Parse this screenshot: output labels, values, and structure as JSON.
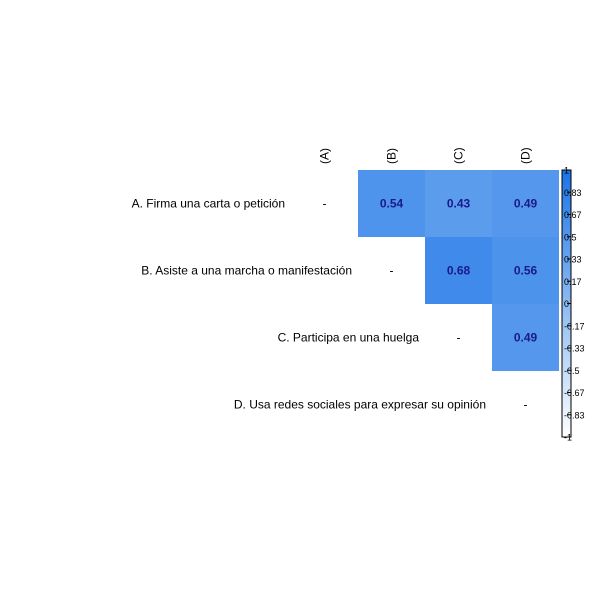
{
  "chart_data": {
    "type": "heatmap",
    "variant": "correlation-matrix-upper-triangle",
    "row_labels": [
      "A. Firma una carta o petición",
      "B. Asiste a una marcha o manifestación",
      "C. Participa en una huelga",
      "D. Usa redes sociales para expresar su opinión"
    ],
    "column_labels": [
      "(A)",
      "(B)",
      "(C)",
      "(D)"
    ],
    "diagonal_label": "-",
    "cells": [
      {
        "row": 0,
        "col": 1,
        "value": 0.54,
        "label": "0.54"
      },
      {
        "row": 0,
        "col": 2,
        "value": 0.43,
        "label": "0.43"
      },
      {
        "row": 0,
        "col": 3,
        "value": 0.49,
        "label": "0.49"
      },
      {
        "row": 1,
        "col": 2,
        "value": 0.68,
        "label": "0.68"
      },
      {
        "row": 1,
        "col": 3,
        "value": 0.56,
        "label": "0.56"
      },
      {
        "row": 2,
        "col": 3,
        "value": 0.49,
        "label": "0.49"
      }
    ],
    "color_scale": {
      "range": [
        -1,
        1
      ],
      "low_color": "#ffffff",
      "high_color": "#1a74e6",
      "value_label_color": "#1a1a8c",
      "ticks": [
        "1",
        "0.83",
        "0.67",
        "0.5",
        "0.33",
        "0.17",
        "0",
        "-0.17",
        "-0.33",
        "-0.5",
        "-0.67",
        "-0.83",
        "-1"
      ]
    },
    "legend": "right"
  }
}
